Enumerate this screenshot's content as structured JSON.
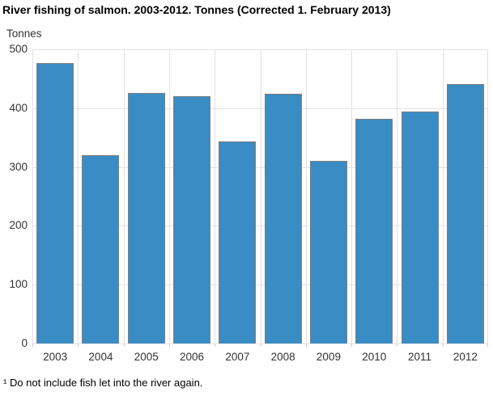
{
  "chart_data": {
    "type": "bar",
    "title": "River fishing of salmon. 2003-2012. Tonnes (Corrected 1. February 2013)",
    "y_axis_title": "Tonnes",
    "xlabel": "",
    "ylabel": "Tonnes",
    "categories": [
      "2003",
      "2004",
      "2005",
      "2006",
      "2007",
      "2008",
      "2009",
      "2010",
      "2011",
      "2012"
    ],
    "values": [
      476,
      320,
      426,
      421,
      343,
      425,
      311,
      382,
      394,
      441
    ],
    "ylim": [
      0,
      500
    ],
    "yticks": [
      0,
      100,
      200,
      300,
      400,
      500
    ],
    "grid": "on",
    "legend": "none",
    "footnote": "¹ Do not include fish let into the river again."
  },
  "colors": {
    "bar_fill": "#3a8cc4",
    "bar_border": "#7f7f7f",
    "grid": "#e2e2e2",
    "axis_line": "#cfcfcf",
    "axis_text": "#333333",
    "title_text": "#000000",
    "background": "#ffffff"
  }
}
